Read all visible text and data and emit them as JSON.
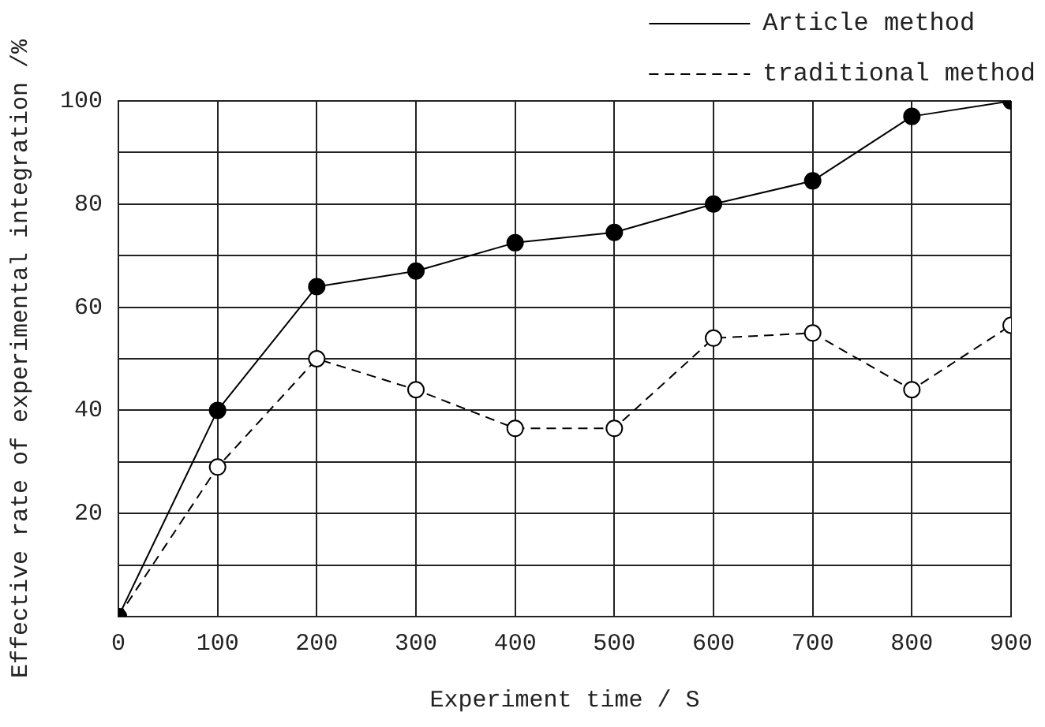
{
  "chart_data": {
    "type": "line",
    "xlabel": "Experiment time / S",
    "ylabel": "Effective rate of experimental integration /%",
    "x": [
      0,
      100,
      200,
      300,
      400,
      500,
      600,
      700,
      800,
      900
    ],
    "series": [
      {
        "name": "Article method",
        "color": "#000000",
        "values": [
          0,
          40,
          64,
          67,
          72.5,
          74.5,
          80,
          84.5,
          97,
          100
        ],
        "line_style": "solid",
        "marker": "circle"
      },
      {
        "name": "traditional method",
        "color": "#000000",
        "values": [
          0,
          29,
          50,
          44,
          36.5,
          36.5,
          54,
          55,
          44,
          56.5
        ],
        "line_style": "dashed",
        "marker": "circle_open"
      }
    ],
    "xlim": [
      0,
      900
    ],
    "xticks": [
      0,
      100,
      200,
      300,
      400,
      500,
      600,
      700,
      800,
      900
    ],
    "ylim": [
      0,
      100
    ],
    "yticks": [
      {
        "value": 0,
        "label": null
      },
      {
        "value": 10,
        "label": null
      },
      20,
      {
        "value": 30,
        "label": null
      },
      40,
      {
        "value": 50,
        "label": null
      },
      60,
      {
        "value": 70,
        "label": null
      },
      80,
      {
        "value": 90,
        "label": null
      },
      100
    ],
    "grid": true,
    "legend": "top right"
  }
}
